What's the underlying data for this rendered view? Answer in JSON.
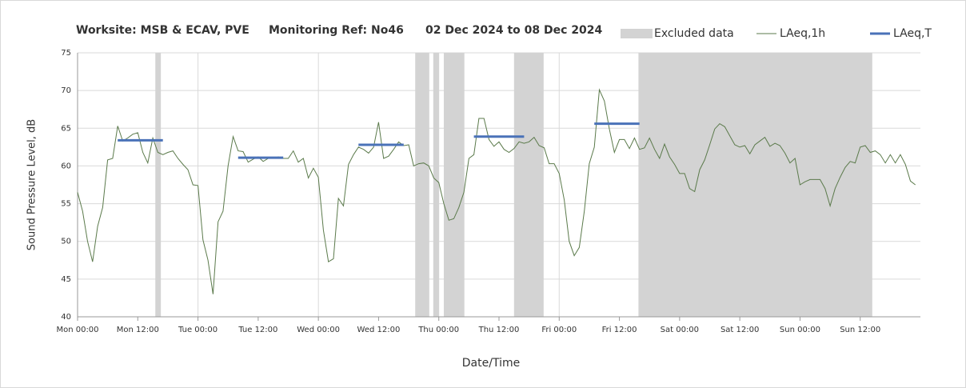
{
  "chart_data": {
    "type": "line",
    "title_parts": [
      "Worksite: MSB & ECAV, PVE",
      "Monitoring Ref: No46",
      "02 Dec 2024 to 08 Dec 2024"
    ],
    "ylabel": "Sound Pressure Level, dB",
    "xlabel": "Date/Time",
    "xlim": [
      0,
      168
    ],
    "ylim": [
      40,
      75
    ],
    "yticks": [
      40,
      45,
      50,
      55,
      60,
      65,
      70,
      75
    ],
    "xticks": [
      {
        "value": 0,
        "label": "Mon 00:00"
      },
      {
        "value": 12,
        "label": "Mon 12:00"
      },
      {
        "value": 24,
        "label": "Tue 00:00"
      },
      {
        "value": 36,
        "label": "Tue 12:00"
      },
      {
        "value": 48,
        "label": "Wed 00:00"
      },
      {
        "value": 60,
        "label": "Wed 12:00"
      },
      {
        "value": 72,
        "label": "Thu 00:00"
      },
      {
        "value": 84,
        "label": "Thu 12:00"
      },
      {
        "value": 96,
        "label": "Fri 00:00"
      },
      {
        "value": 108,
        "label": "Fri 12:00"
      },
      {
        "value": 120,
        "label": "Sat 00:00"
      },
      {
        "value": 132,
        "label": "Sat 12:00"
      },
      {
        "value": 144,
        "label": "Sun 00:00"
      },
      {
        "value": 156,
        "label": "Sun 12:00"
      }
    ],
    "grid": true,
    "legend": "top",
    "excluded": {
      "name": "Excluded data",
      "color": "#d3d3d3",
      "ranges": [
        [
          15.5,
          16.6
        ],
        [
          67.3,
          70.1
        ],
        [
          70.9,
          72.0
        ],
        [
          73.0,
          77.1
        ],
        [
          87.0,
          92.9
        ],
        [
          111.8,
          158.4
        ]
      ]
    },
    "series": [
      {
        "name": "LAeq,1h",
        "color": "#5b7a4b",
        "width": 1,
        "x": [
          0,
          1,
          2,
          3,
          4,
          5,
          6,
          7,
          8,
          9,
          10,
          11,
          12,
          13,
          14,
          15,
          16,
          17,
          18,
          19,
          20,
          21,
          22,
          23,
          24,
          25,
          26,
          27,
          28,
          29,
          30,
          31,
          32,
          33,
          34,
          35,
          36,
          37,
          38,
          39,
          40,
          41,
          42,
          43,
          44,
          45,
          46,
          47,
          48,
          49,
          50,
          51,
          52,
          53,
          54,
          55,
          56,
          57,
          58,
          59,
          60,
          61,
          62,
          63,
          64,
          65,
          66,
          67,
          68,
          69,
          70,
          71,
          72,
          73,
          74,
          75,
          76,
          77,
          78,
          79,
          80,
          81,
          82,
          83,
          84,
          85,
          86,
          87,
          88,
          89,
          90,
          91,
          92,
          93,
          94,
          95,
          96,
          97,
          98,
          99,
          100,
          101,
          102,
          103,
          104,
          105,
          106,
          107,
          108,
          109,
          110,
          111,
          112,
          113,
          114,
          115,
          116,
          117,
          118,
          119,
          120,
          121,
          122,
          123,
          124,
          125,
          126,
          127,
          128,
          129,
          130,
          131,
          132,
          133,
          134,
          135,
          136,
          137,
          138,
          139,
          140,
          141,
          142,
          143,
          144,
          145,
          146,
          147,
          148,
          149,
          150,
          151,
          152,
          153,
          154,
          155,
          156,
          157,
          158,
          159,
          160,
          161,
          162,
          163,
          164,
          165,
          166,
          167
        ],
        "values": [
          56.5,
          54,
          50,
          47.3,
          52,
          54.5,
          60.8,
          61,
          65.3,
          63.3,
          63.7,
          64.2,
          64.4,
          61.8,
          60.4,
          63.7,
          61.8,
          61.5,
          61.8,
          62,
          61,
          60.2,
          59.5,
          57.5,
          57.4,
          50.2,
          47.5,
          43,
          52.6,
          54,
          60,
          63.9,
          62,
          61.9,
          60.5,
          60.9,
          61.2,
          60.6,
          61,
          61,
          61.2,
          61,
          61,
          62,
          60.5,
          61,
          58.4,
          59.7,
          58.5,
          51.5,
          47.3,
          47.7,
          55.7,
          54.7,
          60.2,
          61.5,
          62.5,
          62.2,
          61.7,
          62.5,
          65.8,
          61,
          61.3,
          62.2,
          63.2,
          62.7,
          62.8,
          60,
          60.3,
          60.4,
          60,
          58.4,
          57.8,
          55,
          52.8,
          53,
          54.5,
          56.5,
          61,
          61.5,
          66.3,
          66.3,
          63.5,
          62.6,
          63.2,
          62.2,
          61.8,
          62.3,
          63.2,
          63,
          63.2,
          63.8,
          62.7,
          62.4,
          60.3,
          60.3,
          59,
          55.5,
          50,
          48.1,
          49.2,
          54,
          60.3,
          62.5,
          70.1,
          68.6,
          64.9,
          61.8,
          63.5,
          63.5,
          62.3,
          63.7,
          62.2,
          62.4,
          63.7,
          62.2,
          61,
          62.9,
          61.2,
          60.2,
          59,
          59,
          57,
          56.6,
          59.5,
          60.8,
          62.8,
          64.9,
          65.6,
          65.2,
          64,
          62.8,
          62.5,
          62.7,
          61.6,
          62.8,
          63.3,
          63.8,
          62.6,
          63,
          62.7,
          61.7,
          60.4,
          61,
          57.5,
          57.9,
          58.2,
          58.2,
          58.2,
          57,
          54.7,
          57,
          58.5,
          59.8,
          60.6,
          60.4,
          62.5,
          62.7,
          61.8,
          62,
          61.5,
          60.4,
          61.5,
          60.4,
          61.5,
          60.2,
          58,
          57.5
        ]
      },
      {
        "name": "LAeq,T",
        "color": "#4a72b8",
        "width": 3,
        "x": [
          8,
          17,
          17,
          32,
          41,
          41,
          56,
          65,
          65,
          79,
          89,
          89,
          103,
          112
        ],
        "values": [
          63.4,
          63.4,
          null,
          61.1,
          61.1,
          null,
          62.8,
          62.8,
          null,
          63.9,
          63.9,
          null,
          65.6,
          65.6
        ]
      }
    ]
  }
}
